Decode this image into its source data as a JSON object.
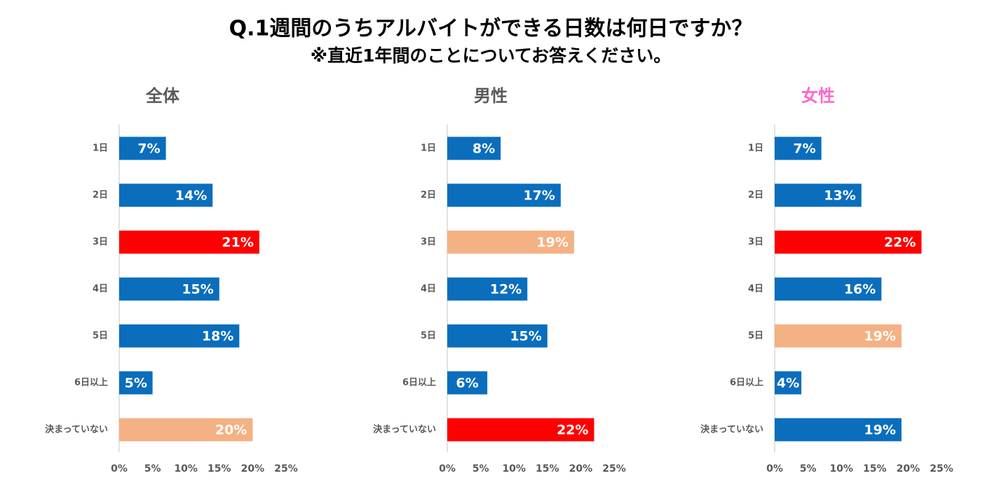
{
  "header": {
    "title": "Q.1週間のうちアルバイトができる日数は何日ですか？",
    "subtitle": "※直近1年間のことについてお答えください。"
  },
  "chart_data": [
    {
      "type": "hbar",
      "title": "全体",
      "title_color": "#595959",
      "categories": [
        "1日",
        "2日",
        "3日",
        "4日",
        "5日",
        "6日以上",
        "決まっていない"
      ],
      "values": [
        7,
        14,
        21,
        15,
        18,
        5,
        20
      ],
      "value_labels": [
        "7%",
        "14%",
        "21%",
        "15%",
        "18%",
        "5%",
        "20%"
      ],
      "colors": [
        "#0a6ebd",
        "#0a6ebd",
        "#ff0000",
        "#0a6ebd",
        "#0a6ebd",
        "#0a6ebd",
        "#f4b183"
      ],
      "xlim": [
        0,
        25
      ],
      "xticks": [
        {
          "value": 0,
          "label": "0%"
        },
        {
          "value": 5,
          "label": "5%"
        },
        {
          "value": 10,
          "label": "10%"
        },
        {
          "value": 15,
          "label": "15%"
        },
        {
          "value": 20,
          "label": "20%"
        },
        {
          "value": 25,
          "label": "25%"
        }
      ]
    },
    {
      "type": "hbar",
      "title": "男性",
      "title_color": "#595959",
      "categories": [
        "1日",
        "2日",
        "3日",
        "4日",
        "5日",
        "6日以上",
        "決まっていない"
      ],
      "values": [
        8,
        17,
        19,
        12,
        15,
        6,
        22
      ],
      "value_labels": [
        "8%",
        "17%",
        "19%",
        "12%",
        "15%",
        "6%",
        "22%"
      ],
      "colors": [
        "#0a6ebd",
        "#0a6ebd",
        "#f4b183",
        "#0a6ebd",
        "#0a6ebd",
        "#0a6ebd",
        "#ff0000"
      ],
      "xlim": [
        0,
        25
      ],
      "xticks": [
        {
          "value": 0,
          "label": "0%"
        },
        {
          "value": 5,
          "label": "5%"
        },
        {
          "value": 10,
          "label": "10%"
        },
        {
          "value": 15,
          "label": "15%"
        },
        {
          "value": 20,
          "label": "20%"
        },
        {
          "value": 25,
          "label": "25%"
        }
      ]
    },
    {
      "type": "hbar",
      "title": "女性",
      "title_color": "#ff66cc",
      "categories": [
        "1日",
        "2日",
        "3日",
        "4日",
        "5日",
        "6日以上",
        "決まっていない"
      ],
      "values": [
        7,
        13,
        22,
        16,
        19,
        4,
        19
      ],
      "value_labels": [
        "7%",
        "13%",
        "22%",
        "16%",
        "19%",
        "4%",
        "19%"
      ],
      "colors": [
        "#0a6ebd",
        "#0a6ebd",
        "#ff0000",
        "#0a6ebd",
        "#f4b183",
        "#0a6ebd",
        "#0a6ebd"
      ],
      "xlim": [
        0,
        25
      ],
      "xticks": [
        {
          "value": 0,
          "label": "0%"
        },
        {
          "value": 5,
          "label": "5%"
        },
        {
          "value": 10,
          "label": "10%"
        },
        {
          "value": 15,
          "label": "15%"
        },
        {
          "value": 20,
          "label": "20%"
        },
        {
          "value": 25,
          "label": "25%"
        }
      ]
    }
  ]
}
